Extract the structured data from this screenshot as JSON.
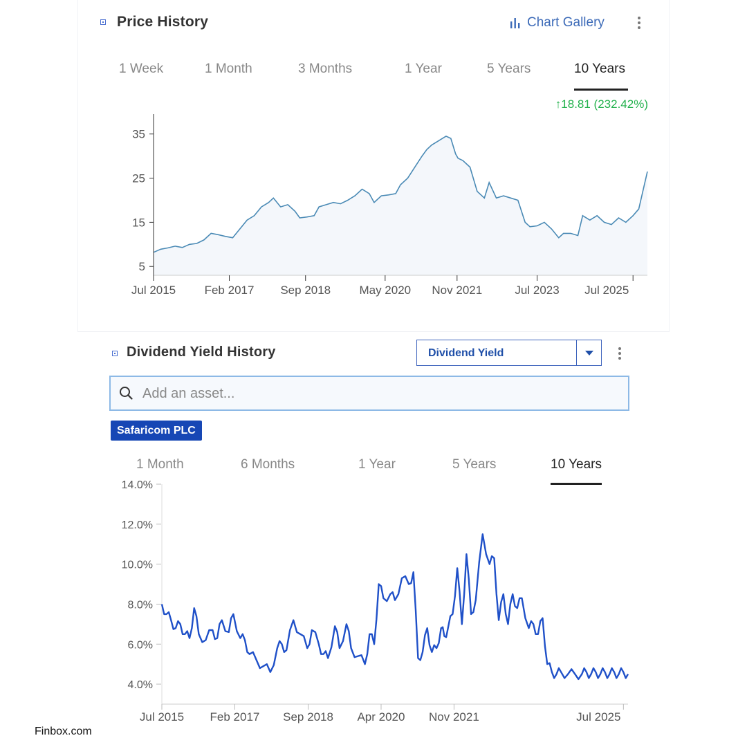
{
  "price_card": {
    "title": "Price History",
    "chart_gallery_label": "Chart Gallery",
    "tabs": [
      "1 Week",
      "1 Month",
      "3 Months",
      "1 Year",
      "5 Years",
      "10 Years"
    ],
    "active_tab": "10 Years",
    "change_text": "18.81 (232.42%)",
    "change_color": "#22b14c"
  },
  "dividend_card": {
    "title": "Dividend Yield History",
    "metric_selected": "Dividend Yield",
    "search_placeholder": "Add an asset...",
    "asset_chip": "Safaricom PLC",
    "tabs": [
      "1 Month",
      "6 Months",
      "1 Year",
      "5 Years",
      "10 Years"
    ],
    "active_tab": "10 Years"
  },
  "brand": "Finbox.com",
  "chart_data": [
    {
      "type": "area",
      "y_ticks": [
        "5",
        "15",
        "25",
        "35"
      ],
      "x_ticks": [
        "Jul 2015",
        "Feb 2017",
        "Sep 2018",
        "May 2020",
        "Nov 2021",
        "Jul 2023",
        "Jul 2025"
      ],
      "x_tick_years": [
        2015.5,
        2017.08,
        2018.67,
        2020.33,
        2021.83,
        2023.5,
        2025.5
      ],
      "ylim": [
        3,
        39.5
      ],
      "xlim": [
        2015.5,
        2025.8
      ],
      "line_color": "#4a8ab5",
      "fill_color": "#f4f7fb",
      "x": [
        2015.5,
        2015.65,
        2015.8,
        2015.95,
        2016.1,
        2016.25,
        2016.4,
        2016.55,
        2016.7,
        2016.85,
        2017.0,
        2017.15,
        2017.3,
        2017.45,
        2017.6,
        2017.75,
        2017.9,
        2018.0,
        2018.15,
        2018.3,
        2018.45,
        2018.55,
        2018.7,
        2018.85,
        2018.95,
        2019.1,
        2019.25,
        2019.4,
        2019.55,
        2019.7,
        2019.85,
        2020.0,
        2020.1,
        2020.25,
        2020.4,
        2020.55,
        2020.65,
        2020.8,
        2020.95,
        2021.1,
        2021.2,
        2021.3,
        2021.45,
        2021.6,
        2021.7,
        2021.8,
        2021.85,
        2021.95,
        2022.1,
        2022.25,
        2022.4,
        2022.5,
        2022.65,
        2022.8,
        2022.95,
        2023.1,
        2023.25,
        2023.35,
        2023.5,
        2023.65,
        2023.8,
        2023.95,
        2024.05,
        2024.2,
        2024.35,
        2024.45,
        2024.6,
        2024.75,
        2024.9,
        2025.05,
        2025.2,
        2025.35,
        2025.5,
        2025.62,
        2025.8
      ],
      "y": [
        8.2,
        8.9,
        9.2,
        9.6,
        9.3,
        10,
        10.2,
        11,
        12.5,
        12.2,
        11.8,
        11.5,
        13.5,
        15.5,
        16.5,
        18.5,
        19.5,
        20.5,
        18.5,
        19,
        17.5,
        16,
        16.2,
        16.5,
        18.5,
        19,
        19.5,
        19.2,
        20,
        21,
        22.5,
        21.5,
        19.5,
        21,
        21.2,
        21.5,
        23.5,
        25,
        27.5,
        30,
        31.5,
        32.5,
        33.5,
        34.5,
        34,
        30.5,
        29.5,
        29,
        27.5,
        22,
        20.5,
        24,
        20.5,
        21,
        20.5,
        20,
        15,
        14,
        14.2,
        15,
        13.5,
        11.5,
        12.5,
        12.5,
        12,
        16.5,
        15.5,
        16.5,
        15,
        14.5,
        16,
        15,
        16.5,
        18,
        26.5
      ]
    },
    {
      "type": "line",
      "y_ticks": [
        "4.0%",
        "6.0%",
        "8.0%",
        "10.0%",
        "12.0%",
        "14.0%"
      ],
      "x_ticks": [
        "Jul 2015",
        "Feb 2017",
        "Sep 2018",
        "Apr 2020",
        "Nov 2021",
        "Jul 2025"
      ],
      "x_tick_years": [
        2015.5,
        2017.08,
        2018.67,
        2020.25,
        2021.83,
        2025.5
      ],
      "ylim": [
        3,
        14
      ],
      "xlim": [
        2015.5,
        2025.6
      ],
      "line_color": "#1f50c8",
      "x": [
        2015.5,
        2015.6,
        2015.7,
        2015.8,
        2015.9,
        2016.0,
        2016.1,
        2016.2,
        2016.3,
        2016.45,
        2016.6,
        2016.7,
        2016.8,
        2016.95,
        2017.05,
        2017.2,
        2017.3,
        2017.4,
        2017.55,
        2017.7,
        2017.85,
        2018.0,
        2018.1,
        2018.2,
        2018.35,
        2018.5,
        2018.65,
        2018.75,
        2018.9,
        2019.0,
        2019.1,
        2019.25,
        2019.35,
        2019.5,
        2019.6,
        2019.75,
        2019.9,
        2020.0,
        2020.1,
        2020.2,
        2020.3,
        2020.45,
        2020.55,
        2020.7,
        2020.85,
        2020.95,
        2021.05,
        2021.15,
        2021.25,
        2021.35,
        2021.45,
        2021.55,
        2021.62,
        2021.7,
        2021.8,
        2021.9,
        2022.0,
        2022.1,
        2022.2,
        2022.3,
        2022.45,
        2022.6,
        2022.7,
        2022.8,
        2022.9,
        2023.0,
        2023.1,
        2023.2,
        2023.3,
        2023.45,
        2023.55,
        2023.65,
        2023.75,
        2023.85,
        2023.95,
        2024.05,
        2024.15,
        2024.3,
        2024.45,
        2024.6,
        2024.7,
        2024.8,
        2024.9,
        2025.0,
        2025.1,
        2025.2,
        2025.3,
        2025.4,
        2025.5,
        2025.6
      ],
      "y": [
        8.0,
        7.5,
        7.2,
        6.8,
        7.0,
        6.5,
        6.3,
        7.8,
        6.5,
        6.2,
        6.7,
        6.3,
        7.2,
        6.6,
        7.5,
        6.3,
        6.2,
        5.5,
        5.2,
        4.9,
        4.6,
        5.8,
        6.0,
        5.7,
        7.2,
        6.5,
        5.8,
        6.7,
        6.0,
        5.5,
        5.3,
        6.9,
        5.8,
        7.0,
        5.8,
        5.4,
        5.0,
        6.5,
        6.0,
        9.0,
        8.3,
        8.5,
        8.2,
        9.3,
        9.0,
        9.6,
        5.3,
        5.6,
        6.8,
        5.6,
        5.8,
        6.8,
        6.4,
        6.8,
        7.5,
        9.8,
        7.0,
        10.5,
        7.5,
        8.2,
        11.5,
        10.0,
        10.3,
        7.2,
        8.5,
        7.0,
        8.5,
        7.8,
        8.3,
        6.8,
        7.0,
        6.5,
        7.3,
        5.0,
        4.6,
        4.5,
        4.6,
        4.5,
        4.5,
        4.5,
        4.6,
        4.5,
        4.6,
        4.5,
        4.6,
        4.5,
        4.6,
        4.5,
        4.6,
        4.5
      ]
    }
  ]
}
